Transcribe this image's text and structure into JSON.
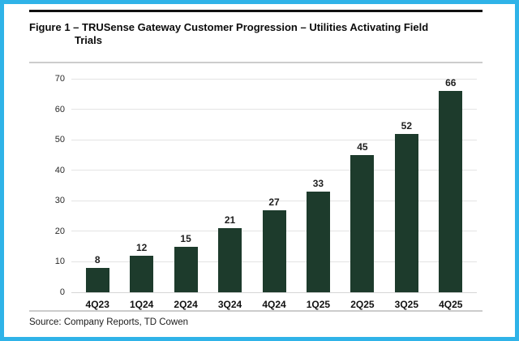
{
  "frame": {
    "border_color": "#2fb3e8",
    "top_rule_color": "#111111",
    "divider_color": "#cccccc"
  },
  "figure": {
    "title_line1": "Figure 1 – TRUSense Gateway Customer Progression – Utilities Activating Field",
    "title_line2": "Trials",
    "source": "Source: Company Reports, TD Cowen"
  },
  "chart_data": {
    "type": "bar",
    "title": "Figure 1 – TRUSense Gateway Customer Progression – Utilities Activating Field Trials",
    "categories": [
      "4Q23",
      "1Q24",
      "2Q24",
      "3Q24",
      "4Q24",
      "1Q25",
      "2Q25",
      "3Q25",
      "4Q25"
    ],
    "values": [
      8,
      12,
      15,
      21,
      27,
      33,
      45,
      52,
      66
    ],
    "xlabel": "",
    "ylabel": "",
    "ylim": [
      0,
      70
    ],
    "y_ticks": [
      0,
      10,
      20,
      30,
      40,
      50,
      60,
      70
    ],
    "grid": "horizontal",
    "legend": "none",
    "value_labels": true,
    "bar_color": "#1d3b2c",
    "source": "Source: Company Reports, TD Cowen"
  }
}
